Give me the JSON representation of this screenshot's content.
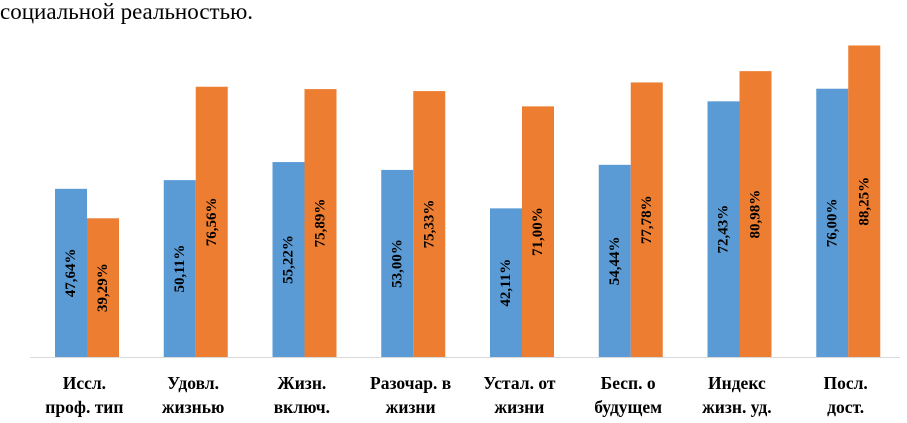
{
  "text_fragment": "социальной реальностью.",
  "chart_data": {
    "type": "bar",
    "categories": [
      [
        "Иссл.",
        "проф. тип"
      ],
      [
        "Удовл.",
        "жизнью"
      ],
      [
        "Жизн.",
        "включ."
      ],
      [
        "Разочар. в",
        "жизни"
      ],
      [
        "Устал. от",
        "жизни"
      ],
      [
        "Бесп. о",
        "будущем"
      ],
      [
        "Индекс",
        "жизн. уд."
      ],
      [
        "Посл.",
        "дост."
      ]
    ],
    "series": [
      {
        "color": "#5b9bd5",
        "values": [
          47.64,
          50.11,
          55.22,
          53.0,
          42.11,
          54.44,
          72.43,
          76.0
        ],
        "labels": [
          "47,64%",
          "50,11%",
          "55,22%",
          "53,00%",
          "42,11%",
          "54,44%",
          "72,43%",
          "76,00%"
        ]
      },
      {
        "color": "#ed7d31",
        "values": [
          39.29,
          76.56,
          75.89,
          75.33,
          71.0,
          77.78,
          80.98,
          88.25
        ],
        "labels": [
          "39,29%",
          "76,56%",
          "75,89%",
          "75,33%",
          "71,00%",
          "77,78%",
          "80,98%",
          "88,25%"
        ]
      }
    ],
    "ylim": [
      0,
      100
    ],
    "grid": false,
    "legend": "none"
  }
}
